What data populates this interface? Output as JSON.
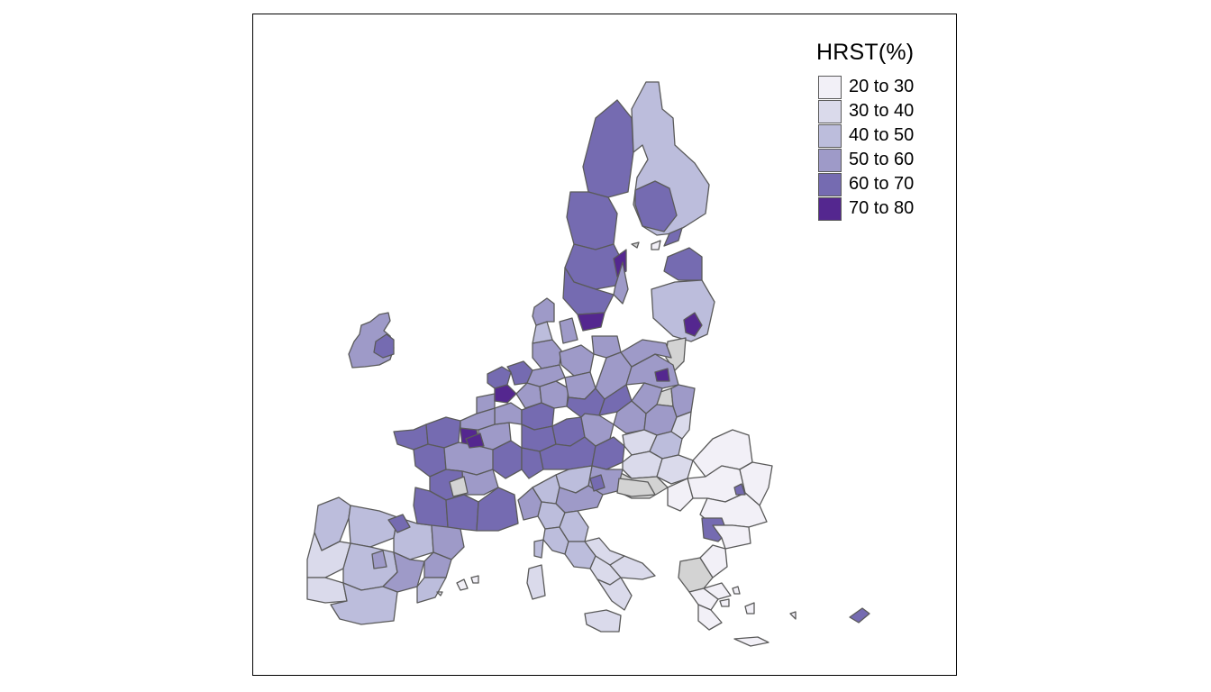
{
  "legend": {
    "title": "HRST(%)",
    "classes": [
      {
        "label": "20 to 30",
        "color": "#f2f0f7"
      },
      {
        "label": "30 to 40",
        "color": "#dadaeb"
      },
      {
        "label": "40 to 50",
        "color": "#bcbddc"
      },
      {
        "label": "50 to 60",
        "color": "#9e9ac8"
      },
      {
        "label": "60 to 70",
        "color": "#756bb1"
      },
      {
        "label": "70 to 80",
        "color": "#54278f"
      }
    ],
    "missing_color": "#d3d3d3"
  }
}
